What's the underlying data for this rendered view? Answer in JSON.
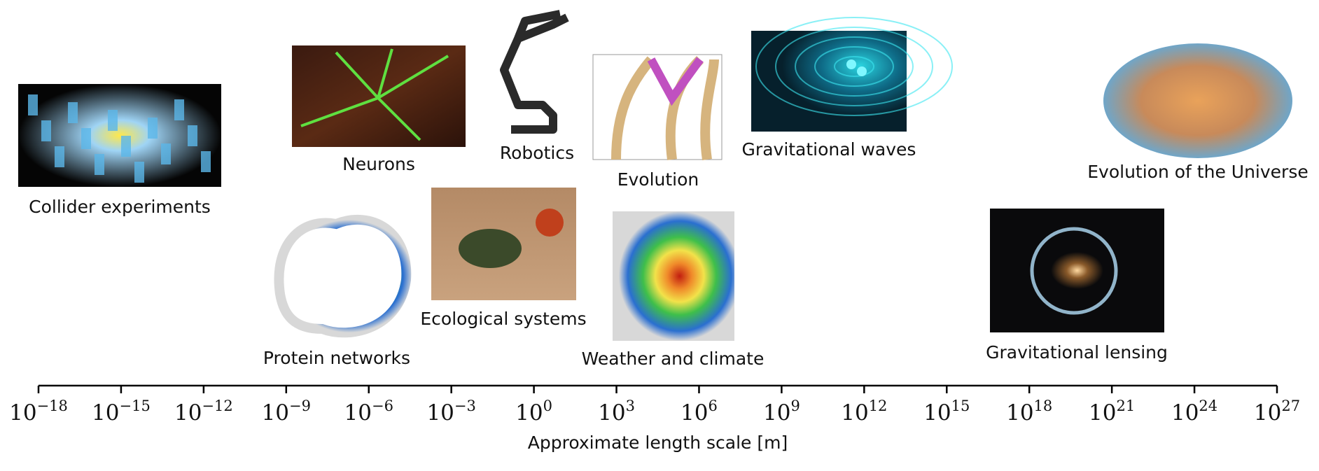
{
  "axis": {
    "label": "Approximate length scale [m]",
    "scale": "log",
    "xlim": [
      1e-18,
      1e+27
    ],
    "ticks": [
      {
        "value": 1e-18,
        "base": "10",
        "exponent": "−18"
      },
      {
        "value": 1e-15,
        "base": "10",
        "exponent": "−15"
      },
      {
        "value": 1e-12,
        "base": "10",
        "exponent": "−12"
      },
      {
        "value": 1e-09,
        "base": "10",
        "exponent": "−9"
      },
      {
        "value": 1e-06,
        "base": "10",
        "exponent": "−6"
      },
      {
        "value": 0.001,
        "base": "10",
        "exponent": "−3"
      },
      {
        "value": 1,
        "base": "10",
        "exponent": "0"
      },
      {
        "value": 1000.0,
        "base": "10",
        "exponent": "3"
      },
      {
        "value": 1000000.0,
        "base": "10",
        "exponent": "6"
      },
      {
        "value": 1000000000.0,
        "base": "10",
        "exponent": "9"
      },
      {
        "value": 1000000000000.0,
        "base": "10",
        "exponent": "12"
      },
      {
        "value": 1000000000000000.0,
        "base": "10",
        "exponent": "15"
      },
      {
        "value": 1e+18,
        "base": "10",
        "exponent": "18"
      },
      {
        "value": 1e+21,
        "base": "10",
        "exponent": "21"
      },
      {
        "value": 1e+24,
        "base": "10",
        "exponent": "24"
      },
      {
        "value": 1e+27,
        "base": "10",
        "exponent": "27"
      }
    ]
  },
  "items": [
    {
      "caption": "Collider experiments"
    },
    {
      "caption": "Neurons"
    },
    {
      "caption": "Robotics"
    },
    {
      "caption": "Evolution"
    },
    {
      "caption": "Gravitational waves"
    },
    {
      "caption": "Evolution of the Universe"
    },
    {
      "caption": "Protein networks"
    },
    {
      "caption": "Ecological systems"
    },
    {
      "caption": "Weather and climate"
    },
    {
      "caption": "Gravitational lensing"
    }
  ]
}
